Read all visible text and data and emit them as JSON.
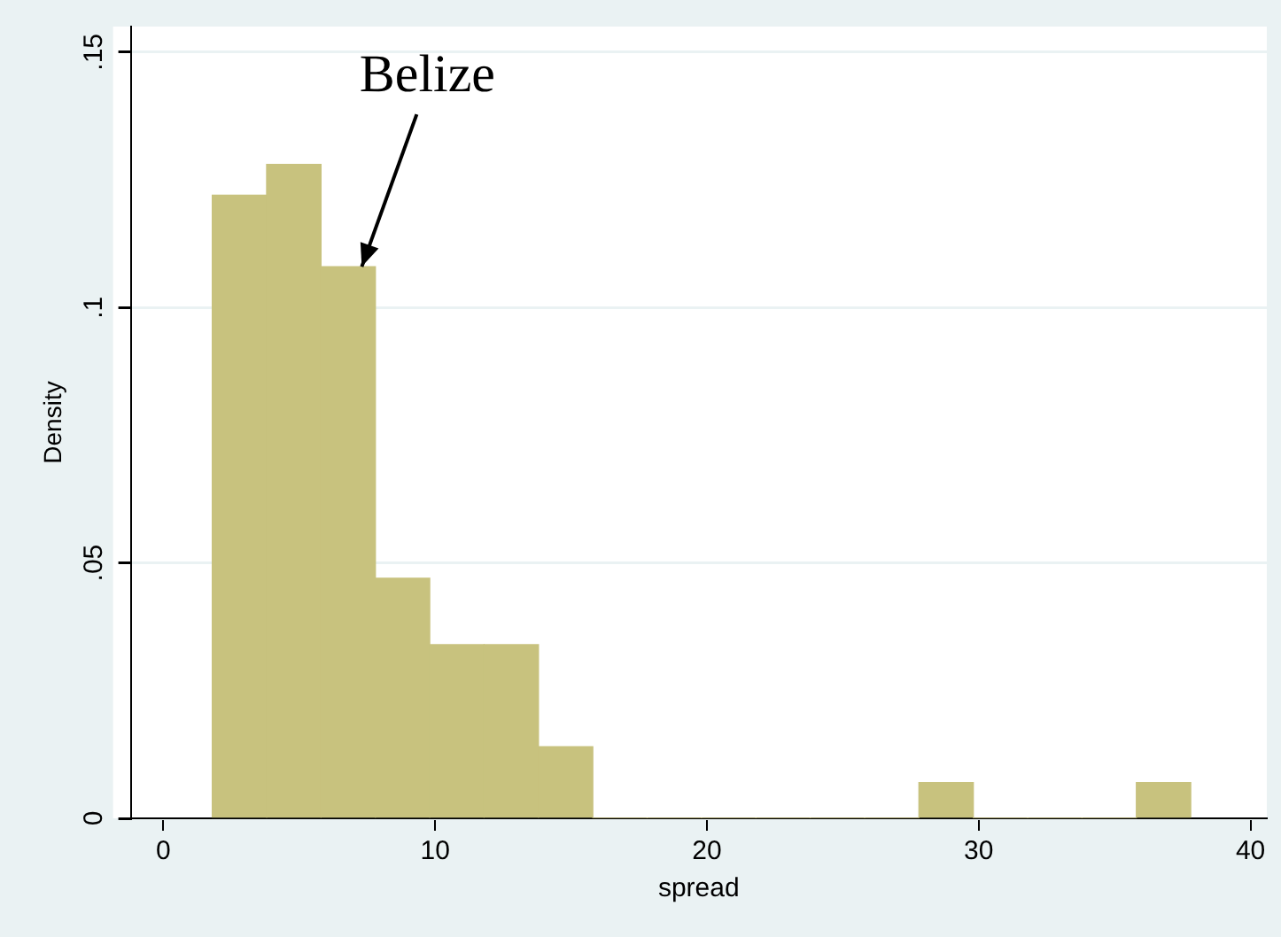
{
  "chart_data": {
    "type": "histogram",
    "xlabel": "spread",
    "ylabel": "Density",
    "bins": [
      1.8,
      3.8,
      5.8,
      7.8,
      9.8,
      11.8,
      13.8,
      15.8,
      17.8,
      19.8,
      21.8,
      23.8,
      25.8,
      27.8,
      29.8,
      31.8,
      33.8,
      35.8,
      37.8
    ],
    "values": [
      0.122,
      0.128,
      0.108,
      0.047,
      0.034,
      0.034,
      0.014,
      0,
      0,
      0,
      0,
      0,
      0,
      0.007,
      0,
      0,
      0,
      0.007
    ],
    "color": "#c8c27e",
    "xlim": [
      -1.2,
      40.6
    ],
    "xticks": [
      0,
      10,
      20,
      30,
      40
    ],
    "ylim": [
      0,
      0.155
    ],
    "yticks": [
      0,
      {
        "value": 0.05,
        "label": ".05"
      },
      {
        "value": 0.1,
        "label": ".1"
      },
      {
        "value": 0.15,
        "label": ".15"
      }
    ],
    "grid": "y",
    "legend": false,
    "annotations": [
      {
        "text": "Belize",
        "x": 7.3,
        "y": 0.108
      }
    ]
  }
}
